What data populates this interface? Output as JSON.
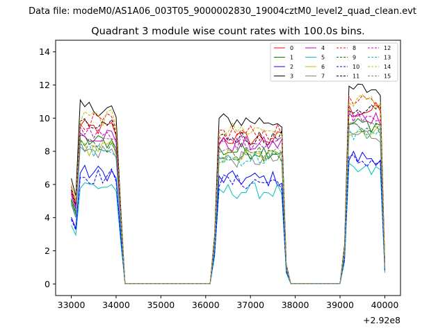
{
  "figure": {
    "suptitle": "Data file: modeM0/AS1A06_003T05_9000002830_19004cztM0_level2_quad_clean.evt"
  },
  "chart_data": {
    "type": "line",
    "title": "Quadrant 3 module wise count rates with 100.0s bins.",
    "xlabel": "",
    "ylabel": "",
    "x_offset_label": "+2.92e8",
    "xlim": [
      32650,
      40350
    ],
    "ylim": [
      -0.7,
      14.7
    ],
    "x_ticks": [
      33000,
      34000,
      35000,
      36000,
      37000,
      38000,
      39000,
      40000
    ],
    "x_tick_labels": [
      "33000",
      "34000",
      "35000",
      "36000",
      "37000",
      "38000",
      "39000",
      "40000"
    ],
    "y_ticks": [
      0,
      2,
      4,
      6,
      8,
      10,
      12,
      14
    ],
    "y_tick_labels": [
      "0",
      "2",
      "4",
      "6",
      "8",
      "10",
      "12",
      "14"
    ],
    "grid": false,
    "legend_position": "top-right",
    "legend_columns": 4,
    "segments": [
      {
        "x_start": 33000,
        "n": 12
      },
      {
        "x_start": 34200,
        "n": 20
      },
      {
        "x_start": 36200,
        "n": 17
      },
      {
        "x_start": 37900,
        "n": 12
      },
      {
        "x_start": 39100,
        "n": 10
      }
    ],
    "series": [
      {
        "name": "0",
        "color": "#ff0000",
        "dashed": false,
        "base": 9.4
      },
      {
        "name": "1",
        "color": "#008000",
        "dashed": false,
        "base": 8.6
      },
      {
        "name": "2",
        "color": "#0000ff",
        "dashed": false,
        "base": 6.7
      },
      {
        "name": "3",
        "color": "#000000",
        "dashed": false,
        "base": 10.6
      },
      {
        "name": "4",
        "color": "#bf00bf",
        "dashed": false,
        "base": 9.0
      },
      {
        "name": "5",
        "color": "#00bfbf",
        "dashed": false,
        "base": 5.9
      },
      {
        "name": "6",
        "color": "#bfbf00",
        "dashed": false,
        "base": 8.2
      },
      {
        "name": "7",
        "color": "#808080",
        "dashed": false,
        "base": 8.0
      },
      {
        "name": "8",
        "color": "#ff0000",
        "dashed": true,
        "base": 9.8
      },
      {
        "name": "9",
        "color": "#008000",
        "dashed": true,
        "base": 8.4
      },
      {
        "name": "10",
        "color": "#0000ff",
        "dashed": true,
        "base": 6.5
      },
      {
        "name": "11",
        "color": "#000000",
        "dashed": true,
        "base": 9.5
      },
      {
        "name": "12",
        "color": "#bf00bf",
        "dashed": true,
        "base": 9.2
      },
      {
        "name": "13",
        "color": "#00bfbf",
        "dashed": true,
        "base": 8.1
      },
      {
        "name": "14",
        "color": "#bfbf00",
        "dashed": true,
        "base": 10.0
      },
      {
        "name": "15",
        "color": "#808080",
        "dashed": true,
        "base": 8.3
      }
    ]
  }
}
